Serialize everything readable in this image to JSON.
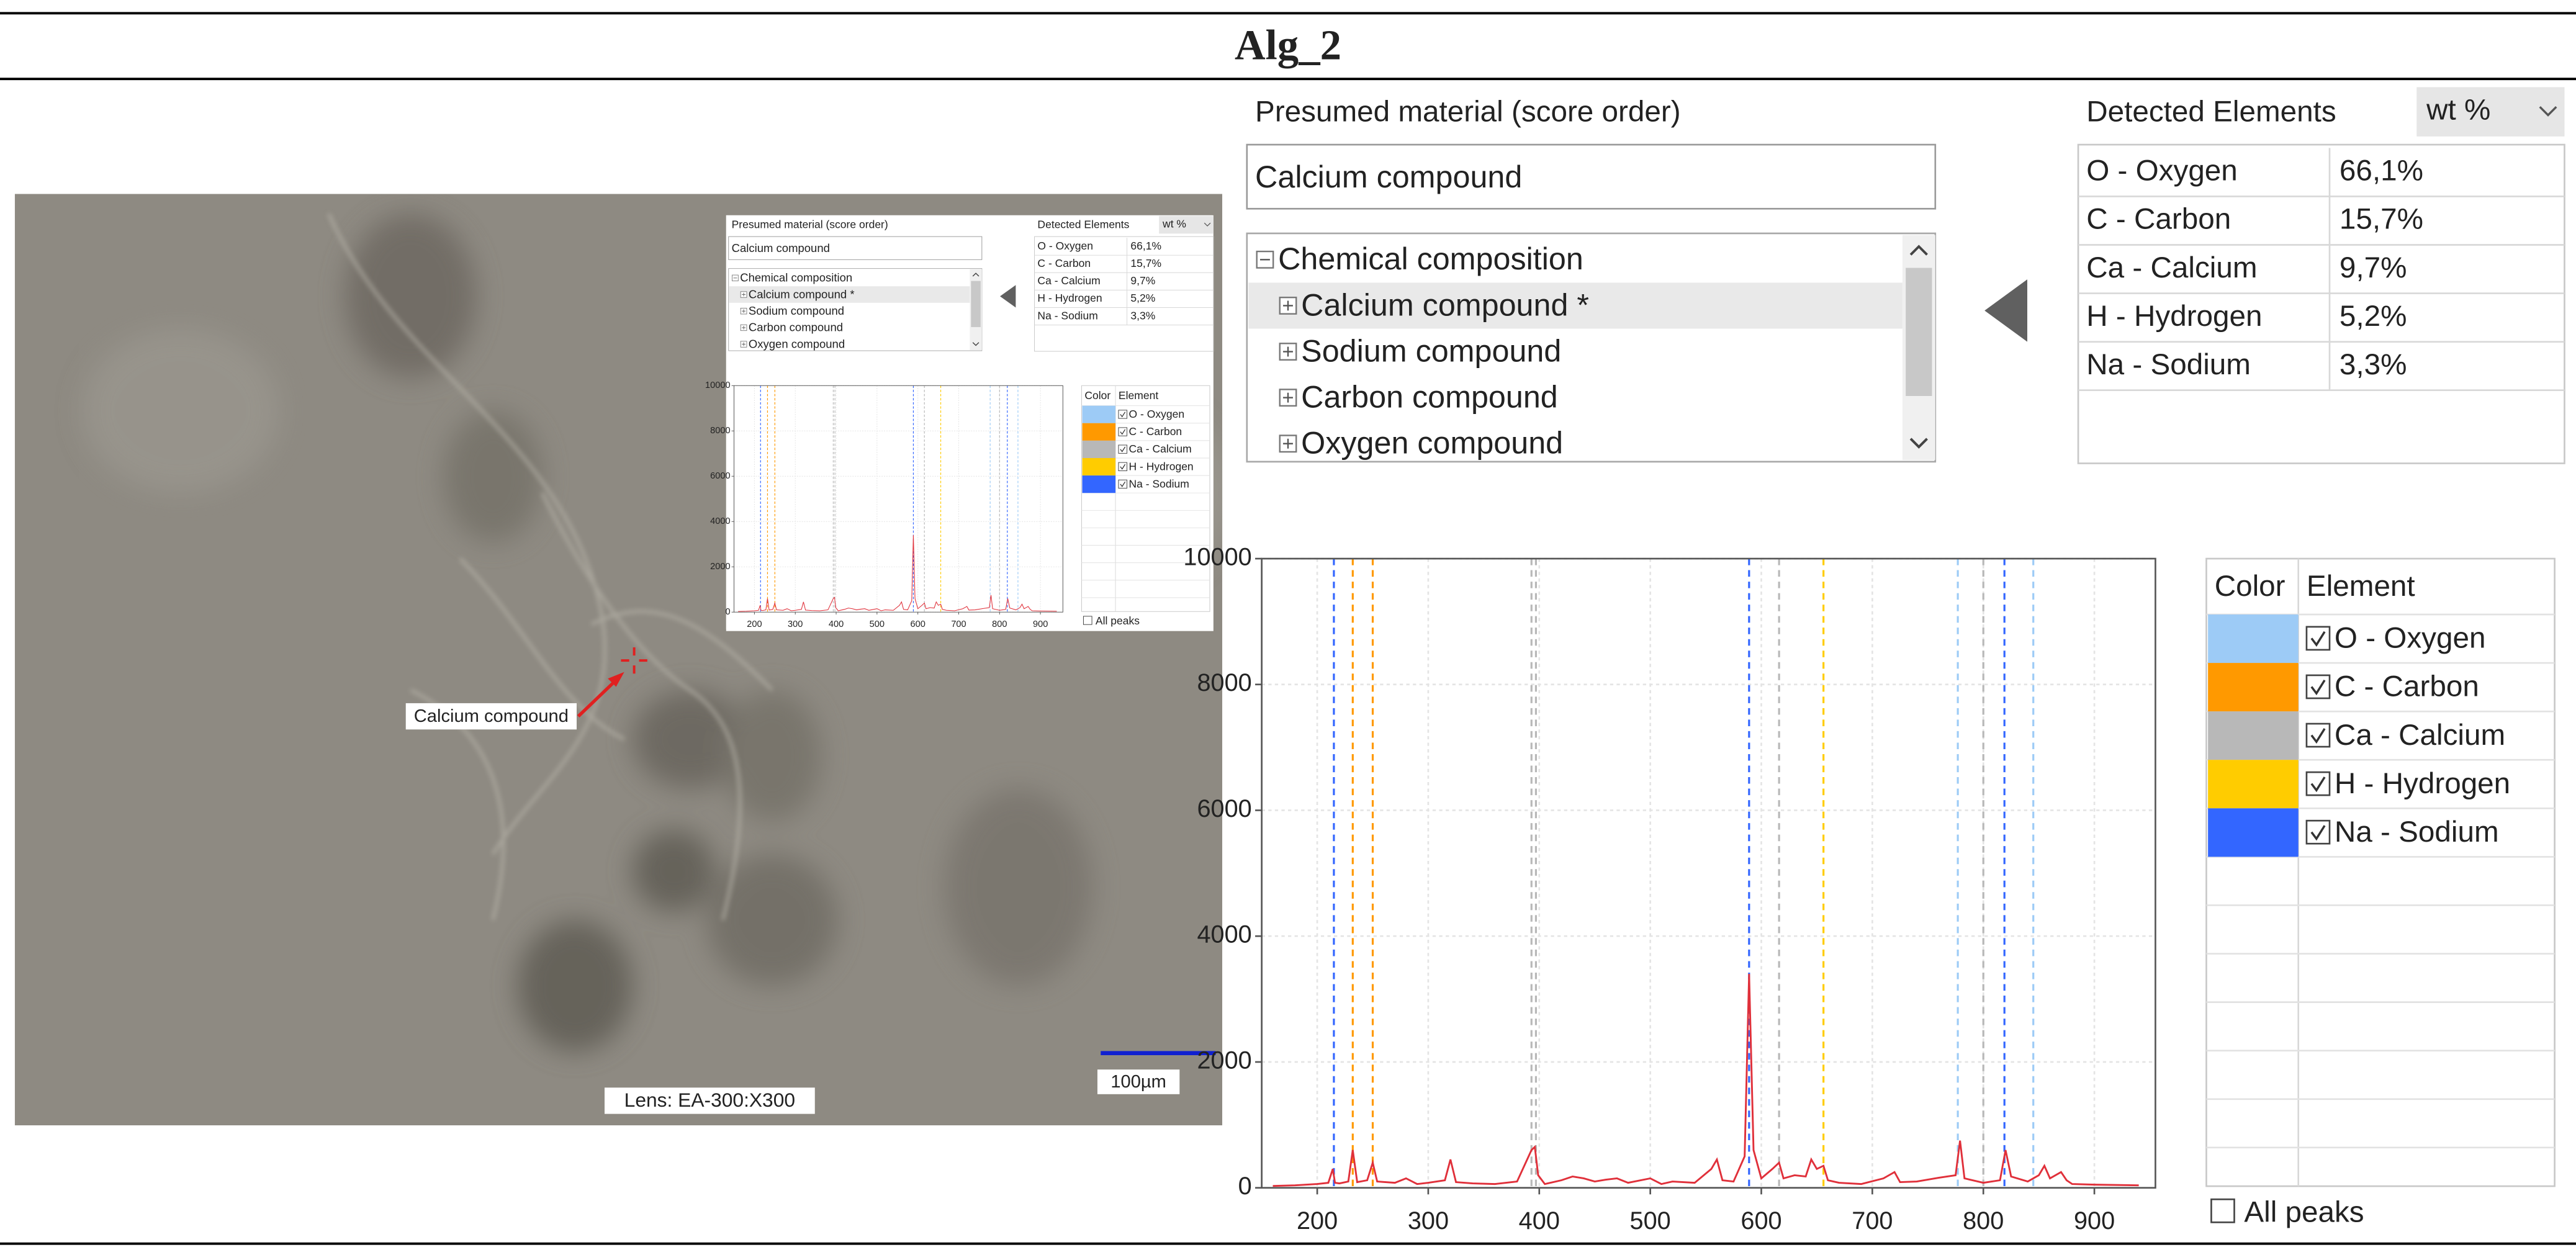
{
  "title": "Alg_2",
  "image": {
    "annotation": "Calcium compound",
    "lens": "Lens: EA-300:X300",
    "scale_bar": "100µm"
  },
  "presumed_material": {
    "label": "Presumed material (score order)",
    "value": "Calcium compound"
  },
  "composition": {
    "title": "Chemical composition",
    "items": [
      "Calcium compound *",
      "Sodium compound",
      "Carbon compound",
      "Oxygen compound"
    ]
  },
  "detected_elements": {
    "title": "Detected Elements",
    "unit": "wt %",
    "rows": [
      [
        "O - Oxygen",
        "66,1%"
      ],
      [
        "C - Carbon",
        "15,7%"
      ],
      [
        "Ca - Calcium",
        "9,7%"
      ],
      [
        "H - Hydrogen",
        "5,2%"
      ],
      [
        "Na - Sodium",
        "3,3%"
      ]
    ]
  },
  "chart_data": {
    "type": "line",
    "color": "#e0303a",
    "x": [
      160,
      180,
      200,
      210,
      214,
      216,
      220,
      228,
      232,
      236,
      245,
      250,
      254,
      270,
      280,
      290,
      300,
      315,
      320,
      325,
      340,
      360,
      380,
      393,
      396,
      399,
      405,
      420,
      430,
      440,
      450,
      460,
      470,
      480,
      500,
      510,
      520,
      540,
      555,
      560,
      565,
      575,
      585,
      589,
      593,
      600,
      610,
      616,
      620,
      630,
      640,
      645,
      650,
      656,
      660,
      670,
      690,
      710,
      720,
      725,
      740,
      760,
      775,
      779,
      783,
      800,
      815,
      820,
      825,
      840,
      850,
      855,
      860,
      870,
      875,
      880,
      900,
      940
    ],
    "values": [
      30,
      40,
      60,
      80,
      300,
      80,
      70,
      100,
      600,
      90,
      120,
      400,
      100,
      80,
      150,
      60,
      80,
      120,
      450,
      90,
      70,
      60,
      100,
      600,
      650,
      200,
      60,
      120,
      180,
      150,
      100,
      130,
      150,
      80,
      150,
      60,
      100,
      80,
      300,
      450,
      120,
      100,
      500,
      3400,
      600,
      150,
      300,
      400,
      150,
      200,
      180,
      450,
      300,
      350,
      120,
      80,
      60,
      150,
      250,
      90,
      100,
      160,
      200,
      750,
      150,
      80,
      120,
      600,
      180,
      100,
      200,
      350,
      150,
      250,
      120,
      60,
      50,
      40
    ],
    "xlim": [
      150,
      955
    ],
    "ylim": [
      0,
      10000
    ],
    "xticks": [
      200,
      300,
      400,
      500,
      600,
      700,
      800,
      900
    ],
    "yticks": [
      0,
      2000,
      4000,
      6000,
      8000,
      10000
    ],
    "grid": true,
    "legend_header": [
      "Color",
      "Element"
    ],
    "elements": [
      {
        "name": "O - Oxygen",
        "color": "#9dcbf6",
        "lines": [
          777,
          845
        ]
      },
      {
        "name": "C - Carbon",
        "color": "#ff9900",
        "lines": [
          232,
          250
        ]
      },
      {
        "name": "Ca - Calcium",
        "color": "#b8b8b8",
        "lines": [
          393,
          397,
          616,
          800
        ]
      },
      {
        "name": "H - Hydrogen",
        "color": "#ffcc00",
        "lines": [
          656
        ]
      },
      {
        "name": "Na - Sodium",
        "color": "#3366ff",
        "lines": [
          215,
          589,
          819
        ]
      }
    ],
    "all_peaks": "All peaks"
  }
}
